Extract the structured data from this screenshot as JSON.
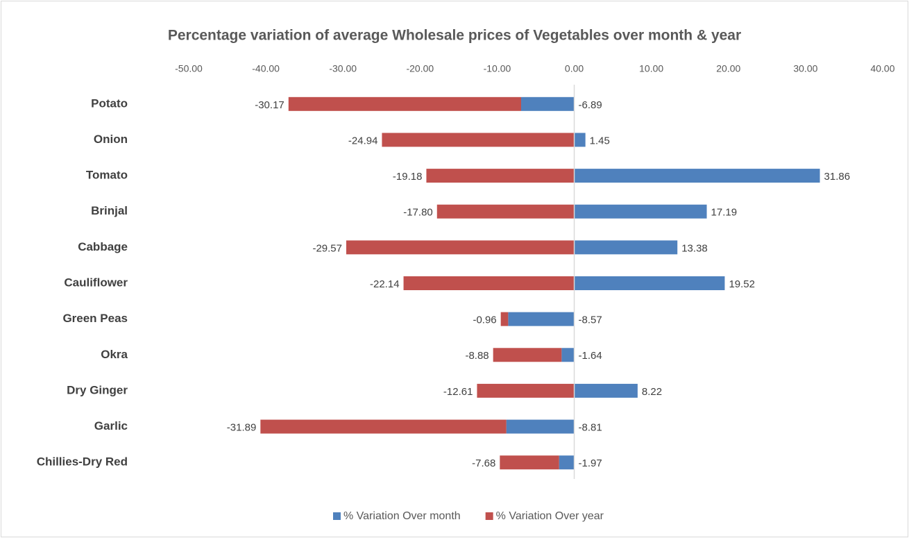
{
  "chart_data": {
    "type": "stacked_bar_horizontal",
    "title": "Percentage variation of average Wholesale prices of Vegetables over month & year",
    "categories": [
      "Potato",
      "Onion",
      "Tomato",
      "Brinjal",
      "Cabbage",
      "Cauliflower",
      "Green Peas",
      "Okra",
      "Dry Ginger",
      "Garlic",
      "Chillies-Dry Red"
    ],
    "series": [
      {
        "name": "% Variation Over month",
        "color": "#4f81bd",
        "values": [
          -6.89,
          1.45,
          31.86,
          17.19,
          13.38,
          19.52,
          -8.57,
          -1.64,
          8.22,
          -8.81,
          -1.97
        ],
        "value_labels": [
          "-6.89",
          "1.45",
          "31.86",
          "17.19",
          "13.38",
          "19.52",
          "-8.57",
          "-1.64",
          "8.22",
          "-8.81",
          "-1.97"
        ]
      },
      {
        "name": "% Variation Over year",
        "color": "#c0504d",
        "values": [
          -30.17,
          -24.94,
          -19.18,
          -17.8,
          -29.57,
          -22.14,
          -0.96,
          -8.88,
          -12.61,
          -31.89,
          -7.68
        ],
        "value_labels": [
          "-30.17",
          "-24.94",
          "-19.18",
          "-17.80",
          "-29.57",
          "-22.14",
          "-0.96",
          "-8.88",
          "-12.61",
          "-31.89",
          "-7.68"
        ]
      }
    ],
    "xlim": [
      -50,
      40
    ],
    "xticks": [
      {
        "value": -50,
        "label": "-50.00"
      },
      {
        "value": -40,
        "label": "-40.00"
      },
      {
        "value": -30,
        "label": "-30.00"
      },
      {
        "value": -20,
        "label": "-20.00"
      },
      {
        "value": -10,
        "label": "-10.00"
      },
      {
        "value": 0,
        "label": "0.00"
      },
      {
        "value": 10,
        "label": "10.00"
      },
      {
        "value": 20,
        "label": "20.00"
      },
      {
        "value": 30,
        "label": "30.00"
      },
      {
        "value": 40,
        "label": "40.00"
      }
    ],
    "legend": "bottom"
  }
}
